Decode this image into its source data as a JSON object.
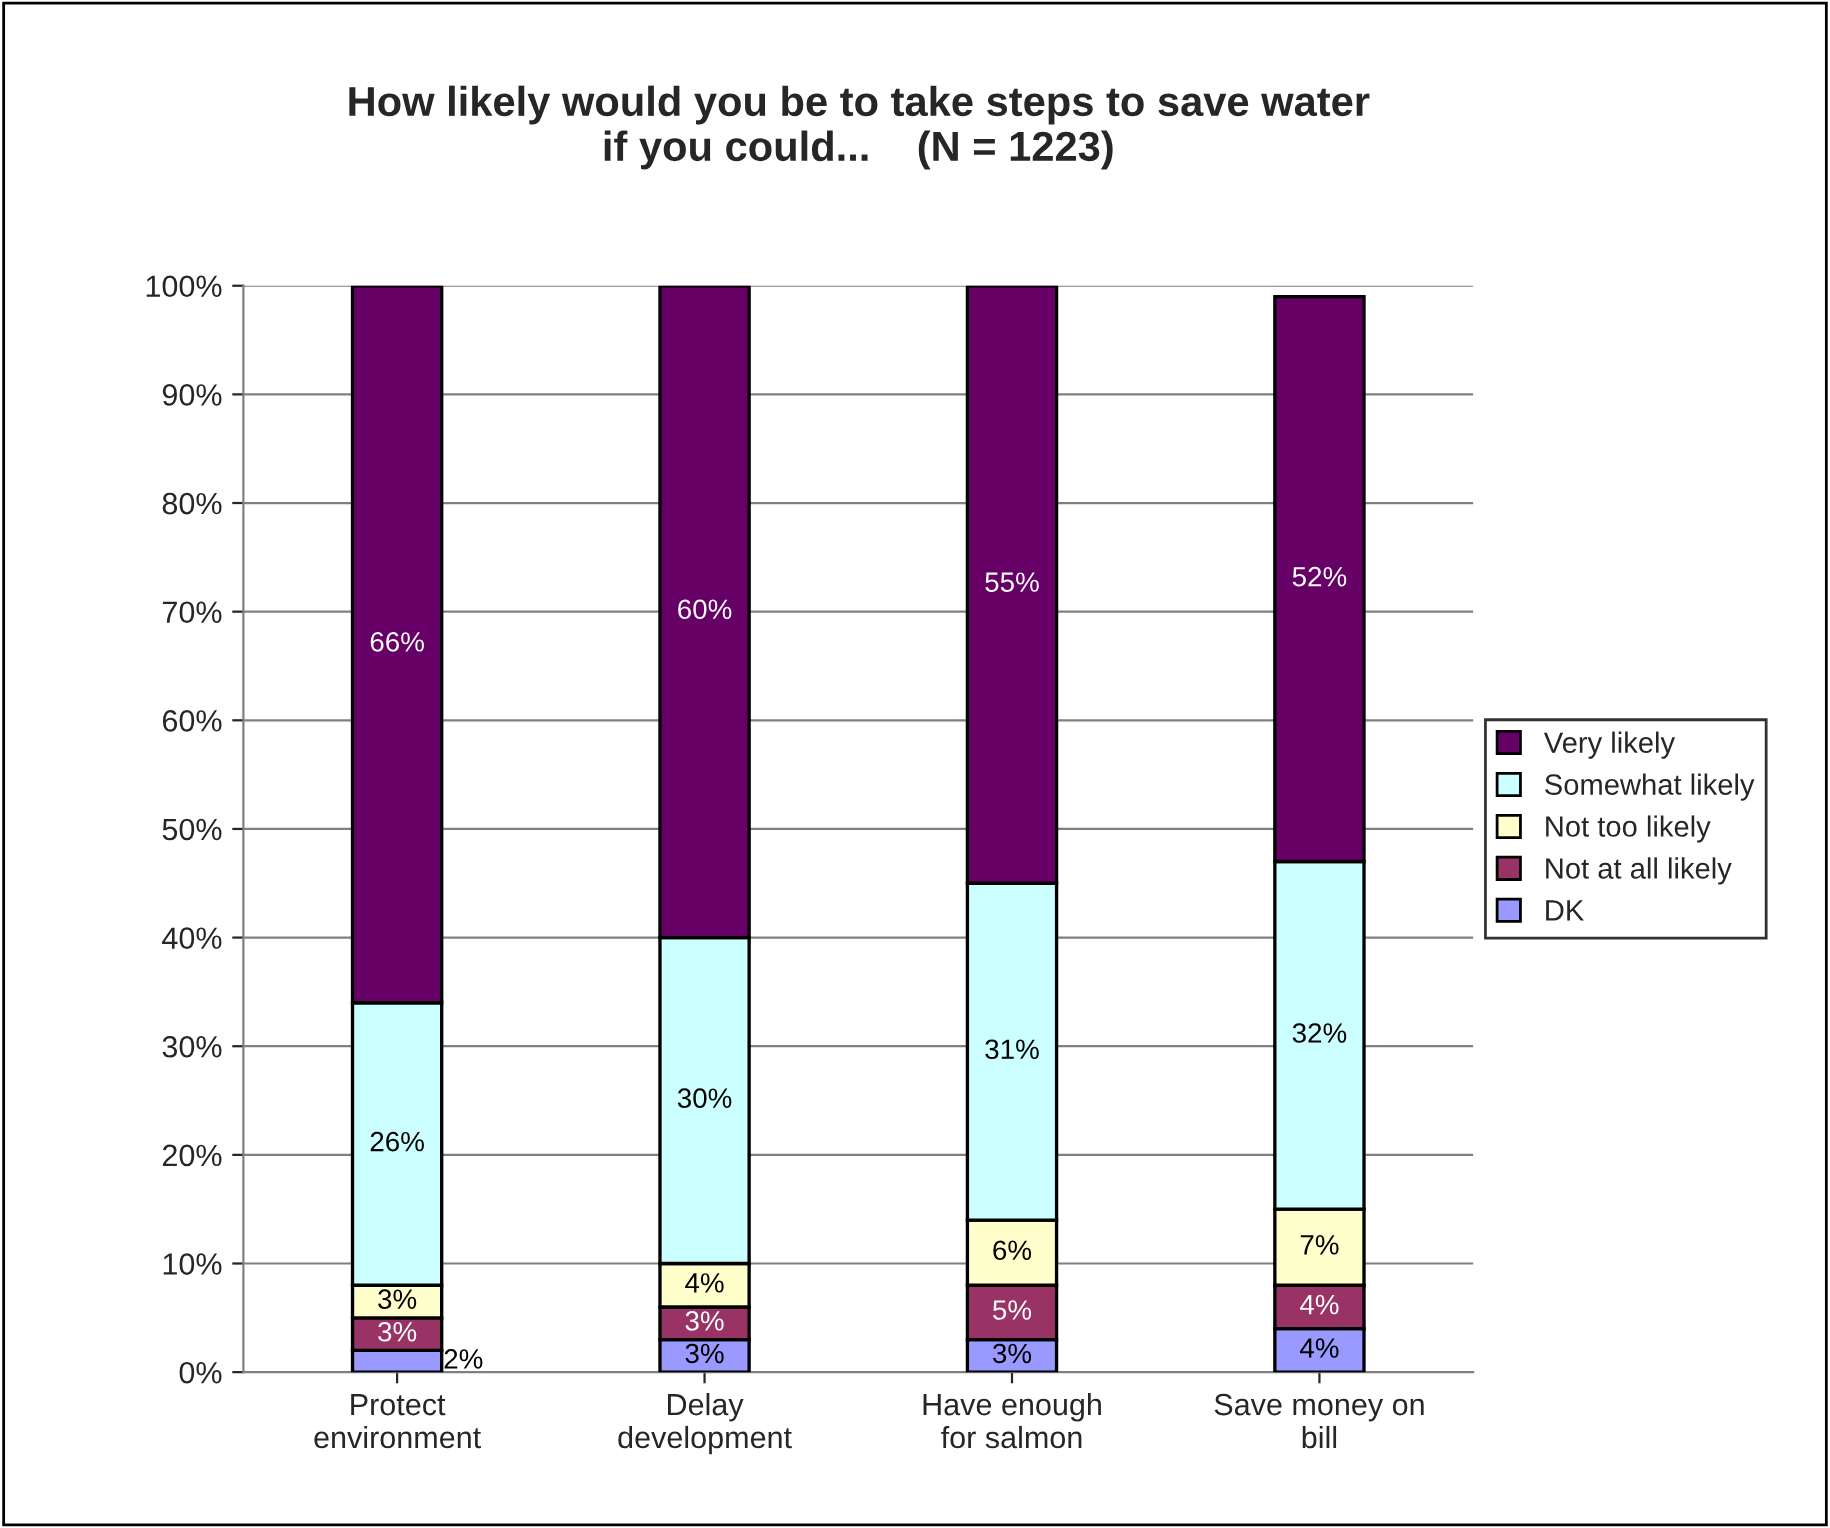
{
  "chart_data": {
    "type": "bar",
    "stacked": true,
    "title": "How likely would you be to take steps to save water\nif you could...    (N = 1223)",
    "categories": [
      "Protect\nenvironment",
      "Delay\ndevelopment",
      "Have enough\nfor salmon",
      "Save money on\nbill"
    ],
    "series": [
      {
        "name": "DK",
        "color": "#9999ff",
        "values": [
          2,
          3,
          3,
          4
        ],
        "value_labels": [
          "2%",
          "3%",
          "3%",
          "4%"
        ]
      },
      {
        "name": "Not at all likely",
        "color": "#993366",
        "values": [
          3,
          3,
          5,
          4
        ],
        "value_labels": [
          "3%",
          "3%",
          "5%",
          "4%"
        ]
      },
      {
        "name": "Not too likely",
        "color": "#ffffcc",
        "values": [
          3,
          4,
          6,
          7
        ],
        "value_labels": [
          "3%",
          "4%",
          "6%",
          "7%"
        ]
      },
      {
        "name": "Somewhat likely",
        "color": "#ccffff",
        "values": [
          26,
          30,
          31,
          32
        ],
        "value_labels": [
          "26%",
          "30%",
          "31%",
          "32%"
        ]
      },
      {
        "name": "Very likely",
        "color": "#660066",
        "values": [
          66,
          60,
          55,
          52
        ],
        "value_labels": [
          "66%",
          "60%",
          "55%",
          "52%"
        ]
      }
    ],
    "ylim": [
      0,
      100
    ],
    "yticks": [
      {
        "value": 0,
        "label": "0%"
      },
      {
        "value": 10,
        "label": "10%"
      },
      {
        "value": 20,
        "label": "20%"
      },
      {
        "value": 30,
        "label": "30%"
      },
      {
        "value": 40,
        "label": "40%"
      },
      {
        "value": 50,
        "label": "50%"
      },
      {
        "value": 60,
        "label": "60%"
      },
      {
        "value": 70,
        "label": "70%"
      },
      {
        "value": 80,
        "label": "80%"
      },
      {
        "value": 90,
        "label": "90%"
      },
      {
        "value": 100,
        "label": "100%"
      }
    ],
    "grid": "y",
    "legend": "right"
  }
}
